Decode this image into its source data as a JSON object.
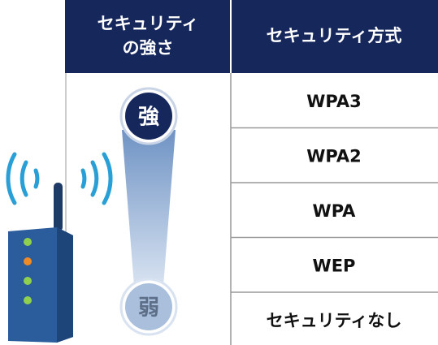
{
  "header": {
    "strength": [
      "セキュリティ",
      "の強さ"
    ],
    "method": "セキュリティ方式"
  },
  "scale": {
    "strong": "強",
    "weak": "弱"
  },
  "table": {
    "rows": [
      "WPA3",
      "WPA2",
      "WPA",
      "WEP",
      "セキュリティなし"
    ]
  }
}
